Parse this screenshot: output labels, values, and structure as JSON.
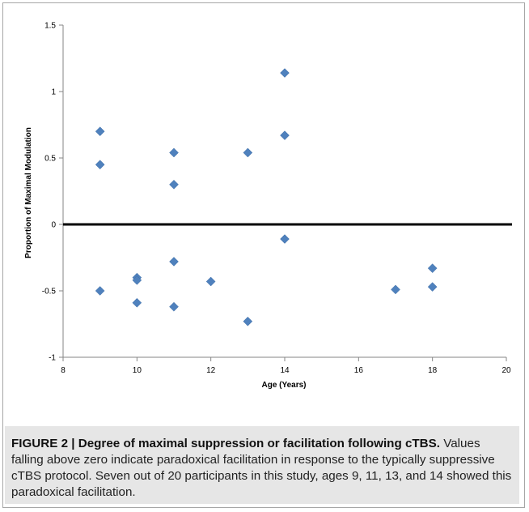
{
  "chart_data": {
    "type": "scatter",
    "xlabel": "Age (Years)",
    "ylabel": "Proportion of Maximal Modulation",
    "xlim": [
      8,
      20
    ],
    "ylim": [
      -1,
      1.5
    ],
    "xticks": [
      8,
      10,
      12,
      14,
      16,
      18,
      20
    ],
    "yticks": [
      -1,
      -0.5,
      0,
      0.5,
      1,
      1.5
    ],
    "xtick_labels": [
      "8",
      "10",
      "12",
      "14",
      "16",
      "18",
      "20"
    ],
    "ytick_labels": [
      "-1",
      "-0.5",
      "0",
      "0.5",
      "1",
      "1.5"
    ],
    "grid": false,
    "zero_line": true,
    "marker": "diamond",
    "color": "#4f81bd",
    "points": [
      {
        "x": 9,
        "y": 0.7
      },
      {
        "x": 9,
        "y": 0.45
      },
      {
        "x": 9,
        "y": -0.5
      },
      {
        "x": 10,
        "y": -0.4
      },
      {
        "x": 10,
        "y": -0.42
      },
      {
        "x": 10,
        "y": -0.59
      },
      {
        "x": 11,
        "y": 0.54
      },
      {
        "x": 11,
        "y": 0.3
      },
      {
        "x": 11,
        "y": -0.28
      },
      {
        "x": 11,
        "y": -0.62
      },
      {
        "x": 12,
        "y": -0.43
      },
      {
        "x": 13,
        "y": 0.54
      },
      {
        "x": 13,
        "y": -0.73
      },
      {
        "x": 14,
        "y": 1.14
      },
      {
        "x": 14,
        "y": 0.67
      },
      {
        "x": 14,
        "y": -0.11
      },
      {
        "x": 17,
        "y": -0.49
      },
      {
        "x": 18,
        "y": -0.33
      },
      {
        "x": 18,
        "y": -0.47
      }
    ]
  },
  "caption": {
    "label": "FIGURE 2 | Degree of maximal suppression or facilitation following cTBS.",
    "text": "Values falling above zero indicate paradoxical facilitation in response to the typically suppressive cTBS protocol. Seven out of 20 participants in this study, ages 9, 11, 13, and 14 showed this paradoxical facilitation."
  }
}
